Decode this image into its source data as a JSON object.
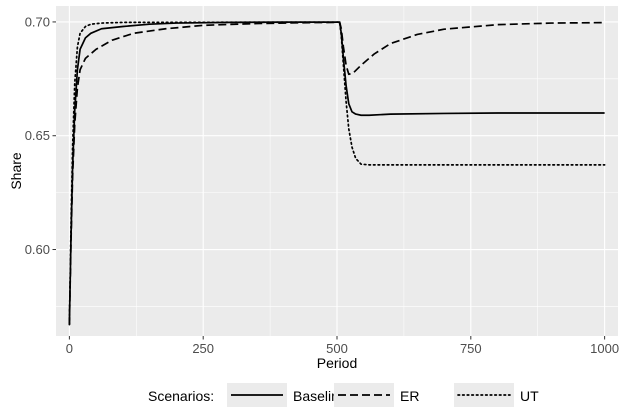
{
  "chart_data": {
    "type": "line",
    "title": "",
    "xlabel": "Period",
    "ylabel": "Share",
    "xlim": [
      -25,
      1025
    ],
    "ylim": [
      0.562,
      0.707
    ],
    "x_ticks": [
      0,
      250,
      500,
      750,
      1000
    ],
    "x_tick_labels": [
      "0",
      "250",
      "500",
      "750",
      "1000"
    ],
    "y_ticks": [
      0.6,
      0.65,
      0.7
    ],
    "y_tick_labels": [
      "0.60",
      "0.65",
      "0.70"
    ],
    "grid": true,
    "legend_position": "bottom",
    "legend_title": "Scenarios:",
    "colors": {
      "panel": "#ebebeb",
      "grid": "#ffffff",
      "line": "#000000"
    },
    "series": [
      {
        "name": "Baseline",
        "linetype": "solid",
        "points": [
          [
            0,
            0.567
          ],
          [
            3,
            0.605
          ],
          [
            6,
            0.636
          ],
          [
            10,
            0.661
          ],
          [
            15,
            0.679
          ],
          [
            20,
            0.688
          ],
          [
            30,
            0.693
          ],
          [
            40,
            0.695
          ],
          [
            60,
            0.697
          ],
          [
            100,
            0.698
          ],
          [
            150,
            0.699
          ],
          [
            200,
            0.6995
          ],
          [
            300,
            0.6998
          ],
          [
            400,
            0.6999
          ],
          [
            505,
            0.6999
          ],
          [
            508,
            0.695
          ],
          [
            512,
            0.684
          ],
          [
            517,
            0.672
          ],
          [
            522,
            0.664
          ],
          [
            528,
            0.6605
          ],
          [
            535,
            0.6595
          ],
          [
            545,
            0.659
          ],
          [
            560,
            0.659
          ],
          [
            600,
            0.6595
          ],
          [
            700,
            0.6598
          ],
          [
            800,
            0.66
          ],
          [
            1000,
            0.66
          ]
        ]
      },
      {
        "name": "ER",
        "linetype": "dashed",
        "points": [
          [
            0,
            0.567
          ],
          [
            3,
            0.603
          ],
          [
            6,
            0.632
          ],
          [
            10,
            0.655
          ],
          [
            15,
            0.671
          ],
          [
            20,
            0.679
          ],
          [
            30,
            0.684
          ],
          [
            50,
            0.688
          ],
          [
            80,
            0.692
          ],
          [
            120,
            0.695
          ],
          [
            180,
            0.697
          ],
          [
            250,
            0.6985
          ],
          [
            350,
            0.6993
          ],
          [
            450,
            0.6997
          ],
          [
            505,
            0.6998
          ],
          [
            508,
            0.697
          ],
          [
            512,
            0.689
          ],
          [
            517,
            0.681
          ],
          [
            522,
            0.677
          ],
          [
            530,
            0.6775
          ],
          [
            545,
            0.681
          ],
          [
            570,
            0.686
          ],
          [
            600,
            0.6905
          ],
          [
            650,
            0.6945
          ],
          [
            700,
            0.6968
          ],
          [
            800,
            0.6988
          ],
          [
            900,
            0.6995
          ],
          [
            1000,
            0.6997
          ]
        ]
      },
      {
        "name": "UT",
        "linetype": "dotted",
        "points": [
          [
            0,
            0.567
          ],
          [
            3,
            0.61
          ],
          [
            6,
            0.645
          ],
          [
            10,
            0.673
          ],
          [
            15,
            0.689
          ],
          [
            20,
            0.695
          ],
          [
            30,
            0.698
          ],
          [
            40,
            0.699
          ],
          [
            60,
            0.6995
          ],
          [
            100,
            0.6998
          ],
          [
            505,
            0.6999
          ],
          [
            508,
            0.694
          ],
          [
            512,
            0.681
          ],
          [
            517,
            0.665
          ],
          [
            522,
            0.653
          ],
          [
            528,
            0.645
          ],
          [
            535,
            0.64
          ],
          [
            545,
            0.6375
          ],
          [
            560,
            0.6372
          ],
          [
            1000,
            0.6372
          ]
        ]
      }
    ]
  }
}
